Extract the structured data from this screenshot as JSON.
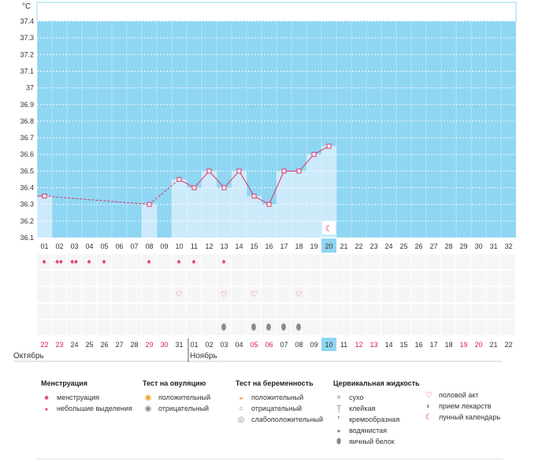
{
  "chart_data": {
    "type": "line",
    "ylabel": "°C",
    "y_ticks": [
      "37.4",
      "37.3",
      "37.2",
      "37.1",
      "37",
      "36.9",
      "36.8",
      "36.7",
      "36.6",
      "36.5",
      "36.4",
      "36.3",
      "36.2",
      "36.1"
    ],
    "ylim": [
      36.1,
      37.4
    ],
    "cycle_days": [
      "01",
      "02",
      "03",
      "04",
      "05",
      "06",
      "07",
      "08",
      "09",
      "10",
      "11",
      "12",
      "13",
      "14",
      "15",
      "16",
      "17",
      "18",
      "19",
      "20",
      "21",
      "22",
      "23",
      "24",
      "25",
      "26",
      "27",
      "28",
      "29",
      "30",
      "31",
      "32"
    ],
    "calendar_dates": [
      "22",
      "23",
      "24",
      "25",
      "26",
      "27",
      "28",
      "29",
      "30",
      "31",
      "01",
      "02",
      "03",
      "04",
      "05",
      "06",
      "07",
      "08",
      "09",
      "10",
      "11",
      "12",
      "13",
      "14",
      "15",
      "16",
      "17",
      "18",
      "19",
      "20",
      "21",
      "22"
    ],
    "weekend_dates_idx": [
      0,
      1,
      7,
      8,
      14,
      15,
      21,
      22,
      28,
      29
    ],
    "today_index": 19,
    "temperature": [
      {
        "day": 1,
        "value": 36.35
      },
      {
        "day": 8,
        "value": 36.3
      },
      {
        "day": 10,
        "value": 36.45
      },
      {
        "day": 11,
        "value": 36.4
      },
      {
        "day": 12,
        "value": 36.5
      },
      {
        "day": 13,
        "value": 36.4
      },
      {
        "day": 14,
        "value": 36.5
      },
      {
        "day": 15,
        "value": 36.35
      },
      {
        "day": 16,
        "value": 36.3
      },
      {
        "day": 17,
        "value": 36.5
      },
      {
        "day": 18,
        "value": 36.5
      },
      {
        "day": 19,
        "value": 36.6
      },
      {
        "day": 20,
        "value": 36.65
      }
    ],
    "grid": true,
    "colors": {
      "plot_bg": "#8fd6f2",
      "bar": "#cdeafb",
      "line": "#e0306a",
      "highlight": "#8fd6f2"
    }
  },
  "months": {
    "first": "Октябрь",
    "second": "Ноябрь"
  },
  "rows": {
    "menstruation": [
      {
        "day": 1,
        "type": "small"
      },
      {
        "day": 2,
        "type": "full"
      },
      {
        "day": 3,
        "type": "full"
      },
      {
        "day": 4,
        "type": "small"
      },
      {
        "day": 5,
        "type": "small"
      },
      {
        "day": 8,
        "type": "small"
      },
      {
        "day": 10,
        "type": "small"
      },
      {
        "day": 11,
        "type": "small"
      },
      {
        "day": 13,
        "type": "small"
      }
    ],
    "intercourse": [
      10,
      13,
      15,
      18
    ],
    "cervical": [
      13,
      15,
      16,
      17,
      18
    ]
  },
  "legend": {
    "menstruation": {
      "title": "Менструация",
      "items": [
        "менструация",
        "небольшие выделения"
      ]
    },
    "ovulation": {
      "title": "Тест на овуляцию",
      "items": [
        "положительный",
        "отрицательный"
      ]
    },
    "pregnancy": {
      "title": "Тест на беременность",
      "items": [
        "положительный",
        "отрицательный",
        "слабоположительный"
      ]
    },
    "cervical": {
      "title": "Цервикальная жидкость",
      "items": [
        "сухо",
        "клейкая",
        "кремообразная",
        "водянистая",
        "яичный белок"
      ]
    },
    "other": {
      "items": [
        "половой акт",
        "прием лекарств",
        "лунный календарь"
      ]
    }
  }
}
